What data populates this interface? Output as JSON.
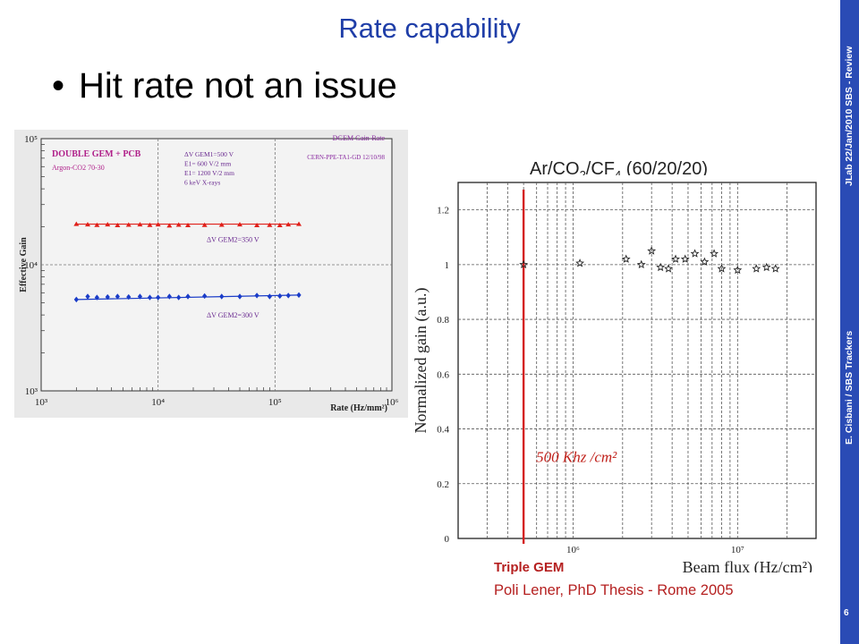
{
  "slide": {
    "title": "Rate capability",
    "bullet": "Hit rate not an issue",
    "sidebar_top": "JLab 22/Jan/2010 SBS - Review",
    "sidebar_bottom": "E. Cisbani / SBS Trackers",
    "page_number": "6",
    "gas_label_parts": [
      "Ar/CO",
      "2",
      "/CF",
      "4",
      " (60/20/20)"
    ],
    "caption_title": "Triple GEM",
    "caption_source": "Poli Lener, PhD Thesis - Rome 2005",
    "colors": {
      "title": "#1f3ea8",
      "sidebar": "#2a4bb5",
      "caption": "#b52020",
      "red_series": "#e0201a",
      "blue_series": "#1a3cc8"
    }
  },
  "chart_data": [
    {
      "type": "scatter",
      "title": "DGEM Gain-Rate",
      "ref": "CERN-PPE-TA1-GD 12/10/98",
      "box_title": "DOUBLE GEM + PCB",
      "box_sub": "Argon-CO2 70-30",
      "conditions": [
        "ΔV GEM1=500 V",
        "E1= 600 V/2 mm",
        "E1= 1200 V/2 mm",
        "6 keV X-rays"
      ],
      "xlabel": "Rate (Hz/mm²)",
      "ylabel": "Effective Gain",
      "xscale": "log",
      "yscale": "log",
      "xlim": [
        1000,
        1000000
      ],
      "ylim": [
        1000,
        100000
      ],
      "x_ticks": [
        "10³",
        "10⁴",
        "10⁵",
        "10⁶"
      ],
      "y_ticks": [
        "10³",
        "10⁴",
        "10⁵"
      ],
      "grid": true,
      "series": [
        {
          "name": "ΔV GEM2=350 V",
          "color": "#e0201a",
          "x": [
            2000,
            2500,
            3000,
            3700,
            4500,
            5600,
            7000,
            8500,
            10000,
            12500,
            15000,
            18000,
            25000,
            35000,
            50000,
            70000,
            90000,
            110000,
            130000,
            160000
          ],
          "y": [
            21000,
            20800,
            20600,
            20800,
            20500,
            20700,
            20800,
            20600,
            20800,
            20400,
            20700,
            20500,
            20600,
            20700,
            20800,
            20500,
            20600,
            20500,
            20800,
            21000
          ]
        },
        {
          "name": "ΔV GEM2=300 V",
          "color": "#1a3cc8",
          "x": [
            2000,
            2500,
            3000,
            3700,
            4500,
            5600,
            7000,
            8500,
            10000,
            12500,
            15000,
            18000,
            25000,
            35000,
            50000,
            70000,
            90000,
            110000,
            130000,
            160000
          ],
          "y": [
            5300,
            5600,
            5500,
            5550,
            5600,
            5550,
            5600,
            5500,
            5500,
            5600,
            5500,
            5600,
            5650,
            5600,
            5600,
            5700,
            5600,
            5650,
            5700,
            5750
          ]
        }
      ]
    },
    {
      "type": "scatter",
      "title": "",
      "xlabel": "Beam flux (Hz/cm²)",
      "ylabel": "Normalized gain (a.u.)",
      "xscale": "log",
      "yscale": "linear",
      "xlim": [
        200000,
        30000000
      ],
      "ylim": [
        0,
        1.3
      ],
      "x_ticks": [
        "10⁶",
        "10⁷"
      ],
      "y_ticks": [
        "0",
        "0.2",
        "0.4",
        "0.6",
        "0.8",
        "1",
        "1.2"
      ],
      "grid": true,
      "marker_line": {
        "x": 500000,
        "label": "500 Khz /cm²"
      },
      "series": [
        {
          "name": "",
          "x": [
            500000,
            1100000,
            2100000,
            2600000,
            3000000,
            3400000,
            3800000,
            4200000,
            4800000,
            5500000,
            6300000,
            7200000,
            8000000,
            10000000,
            13000000,
            15000000,
            17000000
          ],
          "y": [
            1.0,
            1.005,
            1.02,
            1.0,
            1.05,
            0.99,
            0.985,
            1.02,
            1.02,
            1.04,
            1.01,
            1.04,
            0.985,
            0.98,
            0.985,
            0.99,
            0.985
          ]
        }
      ]
    }
  ]
}
